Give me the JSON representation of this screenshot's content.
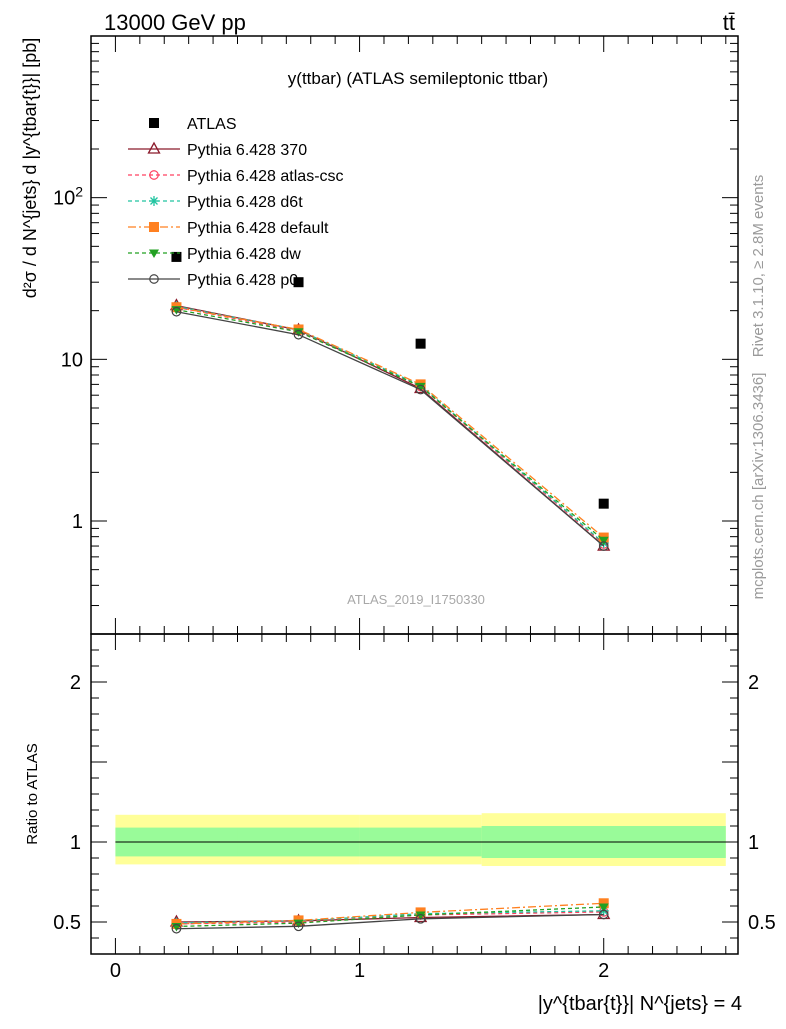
{
  "header": {
    "energy_label": "13000 GeV pp",
    "process_label": "tt̄"
  },
  "side": {
    "rivet_label": "Rivet 3.1.10, ≥ 2.8M events",
    "site_label": "mcplots.cern.ch [arXiv:1306.3436]"
  },
  "chart_data": {
    "type": "line",
    "title": "y(ttbar) (ATLAS semileptonic ttbar)",
    "analysis_label": "ATLAS_2019_I1750330",
    "x_label": "|y^{tbar{t}}| N^{jets} = 4",
    "main_panel": {
      "y_label": "d²σ / d N^{jets} d |y^{tbar{t}}| [pb]",
      "y_scale": "log",
      "ylim": [
        0.2,
        1000
      ],
      "y_ticks": [
        {
          "v": 1,
          "label": "1"
        },
        {
          "v": 10,
          "label": "10"
        },
        {
          "v": 100,
          "label": "10²"
        }
      ]
    },
    "ratio_panel": {
      "y_label": "Ratio to ATLAS",
      "ylim": [
        0.3,
        2.3
      ],
      "y_ticks": [
        {
          "v": 0.5,
          "label": "0.5"
        },
        {
          "v": 1,
          "label": "1"
        },
        {
          "v": 2,
          "label": "2"
        }
      ],
      "bands": {
        "inner": [
          [
            0.0,
            0.5,
            0.91,
            1.09
          ],
          [
            0.5,
            1.0,
            0.91,
            1.09
          ],
          [
            1.0,
            1.5,
            0.91,
            1.09
          ],
          [
            1.5,
            2.5,
            0.9,
            1.1
          ]
        ],
        "outer": [
          [
            0.0,
            0.5,
            0.86,
            1.17
          ],
          [
            0.5,
            1.0,
            0.86,
            1.17
          ],
          [
            1.0,
            1.5,
            0.86,
            1.17
          ],
          [
            1.5,
            2.5,
            0.85,
            1.18
          ]
        ]
      }
    },
    "xlim": [
      -0.1,
      2.55
    ],
    "x_ticks": [
      {
        "v": 0,
        "label": "0"
      },
      {
        "v": 1,
        "label": "1"
      },
      {
        "v": 2,
        "label": "2"
      }
    ],
    "x": [
      0.25,
      0.75,
      1.25,
      2.0
    ],
    "legend_position": "top-left",
    "data": {
      "name": "ATLAS",
      "values": [
        43,
        30,
        12.5,
        1.28
      ],
      "marker": "square",
      "color": "#000000"
    },
    "series": [
      {
        "name": "Pythia 6.428 370",
        "color": "#8b1a2b",
        "dash": "",
        "marker": "triangle-open",
        "values": [
          21.5,
          15.2,
          6.6,
          0.7
        ],
        "ratio": [
          0.5,
          0.507,
          0.528,
          0.547
        ]
      },
      {
        "name": "Pythia 6.428 atlas-csc",
        "color": "#ff4060",
        "dash": "4,3",
        "marker": "circle-open",
        "values": [
          21.0,
          15.0,
          6.8,
          0.72
        ],
        "ratio": [
          0.488,
          0.5,
          0.544,
          0.563
        ]
      },
      {
        "name": "Pythia 6.428 d6t",
        "color": "#20c4a0",
        "dash": "4,3",
        "marker": "star",
        "values": [
          21.3,
          15.2,
          6.9,
          0.73
        ],
        "ratio": [
          0.495,
          0.507,
          0.552,
          0.57
        ]
      },
      {
        "name": "Pythia 6.428 default",
        "color": "#ff8020",
        "dash": "8,3,2,3",
        "marker": "square",
        "values": [
          21.0,
          15.3,
          7.0,
          0.79
        ],
        "ratio": [
          0.488,
          0.51,
          0.56,
          0.617
        ]
      },
      {
        "name": "Pythia 6.428 dw",
        "color": "#22a022",
        "dash": "4,3",
        "marker": "triangle-down",
        "values": [
          20.3,
          14.8,
          6.8,
          0.76
        ],
        "ratio": [
          0.472,
          0.493,
          0.544,
          0.594
        ]
      },
      {
        "name": "Pythia 6.428 p0",
        "color": "#444444",
        "dash": "",
        "marker": "circle-open",
        "values": [
          19.7,
          14.2,
          6.5,
          0.7
        ],
        "ratio": [
          0.458,
          0.473,
          0.52,
          0.547
        ]
      }
    ]
  }
}
